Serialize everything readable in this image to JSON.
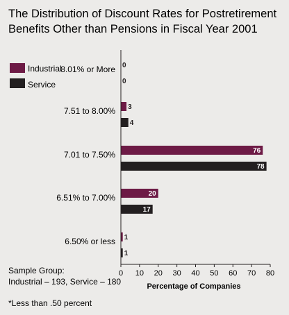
{
  "title_lines": [
    "The Distribution of Discount Rates for Postretirement",
    "Benefits Other than Pensions in Fiscal Year 2001"
  ],
  "notes": {
    "sample_line1": "Sample Group:",
    "sample_line2": "Industrial – 193, Service – 180",
    "footnote": "*Less than .50 percent"
  },
  "colors": {
    "background": "#ecebe9",
    "industrial": "#6d1a45",
    "service": "#231f20",
    "axis": "#231f20"
  },
  "chart_data": {
    "type": "bar",
    "orientation": "horizontal",
    "title": "The Distribution of Discount Rates for Postretirement Benefits Other than Pensions in Fiscal Year 2001",
    "categories": [
      "8.01% or More",
      "7.51 to 8.00%",
      "7.01 to 7.50%",
      "6.51% to 7.00%",
      "6.50% or less"
    ],
    "series": [
      {
        "name": "Industrial",
        "values": [
          0,
          3,
          76,
          20,
          1
        ],
        "labels": [
          "0",
          "3",
          "76",
          "20",
          "1"
        ]
      },
      {
        "name": "Service",
        "values": [
          0,
          4,
          78,
          17,
          1
        ],
        "labels": [
          "0",
          "4",
          "78",
          "17",
          "1"
        ]
      }
    ],
    "xlabel": "Percentage of Companies",
    "ylabel": "",
    "xlim": [
      0,
      80
    ],
    "xticks": [
      0,
      10,
      20,
      30,
      40,
      50,
      60,
      70,
      80
    ],
    "grid": false,
    "legend_position": "top-left"
  }
}
